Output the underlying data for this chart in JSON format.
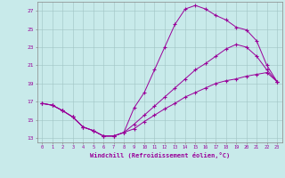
{
  "xlabel": "Windchill (Refroidissement éolien,°C)",
  "background_color": "#c8eaea",
  "line_color": "#990099",
  "xlim": [
    -0.5,
    23.5
  ],
  "ylim": [
    12.5,
    28.0
  ],
  "yticks": [
    13,
    15,
    17,
    19,
    21,
    23,
    25,
    27
  ],
  "xticks": [
    0,
    1,
    2,
    3,
    4,
    5,
    6,
    7,
    8,
    9,
    10,
    11,
    12,
    13,
    14,
    15,
    16,
    17,
    18,
    19,
    20,
    21,
    22,
    23
  ],
  "line1_x": [
    0,
    1,
    2,
    3,
    4,
    5,
    6,
    7,
    8,
    9,
    10,
    11,
    12,
    13,
    14,
    15,
    16,
    17,
    18,
    19,
    20,
    21,
    22,
    23
  ],
  "line1_y": [
    16.8,
    16.6,
    16.0,
    15.3,
    14.2,
    13.8,
    13.2,
    13.2,
    13.6,
    16.3,
    18.0,
    20.5,
    23.0,
    25.5,
    27.2,
    27.6,
    27.2,
    26.5,
    26.0,
    25.2,
    24.9,
    23.7,
    21.0,
    19.2
  ],
  "line2_x": [
    0,
    1,
    2,
    3,
    4,
    5,
    6,
    7,
    8,
    9,
    10,
    11,
    12,
    13,
    14,
    15,
    16,
    17,
    18,
    19,
    20,
    21,
    22,
    23
  ],
  "line2_y": [
    16.8,
    16.6,
    16.0,
    15.3,
    14.2,
    13.8,
    13.2,
    13.2,
    13.6,
    14.5,
    15.5,
    16.5,
    17.5,
    18.5,
    19.5,
    20.5,
    21.2,
    22.0,
    22.8,
    23.3,
    23.0,
    22.0,
    20.5,
    19.2
  ],
  "line3_x": [
    0,
    1,
    2,
    3,
    4,
    5,
    6,
    7,
    8,
    9,
    10,
    11,
    12,
    13,
    14,
    15,
    16,
    17,
    18,
    19,
    20,
    21,
    22,
    23
  ],
  "line3_y": [
    16.8,
    16.6,
    16.0,
    15.3,
    14.2,
    13.8,
    13.2,
    13.2,
    13.6,
    14.0,
    14.8,
    15.5,
    16.2,
    16.8,
    17.5,
    18.0,
    18.5,
    19.0,
    19.3,
    19.5,
    19.8,
    20.0,
    20.2,
    19.2
  ]
}
